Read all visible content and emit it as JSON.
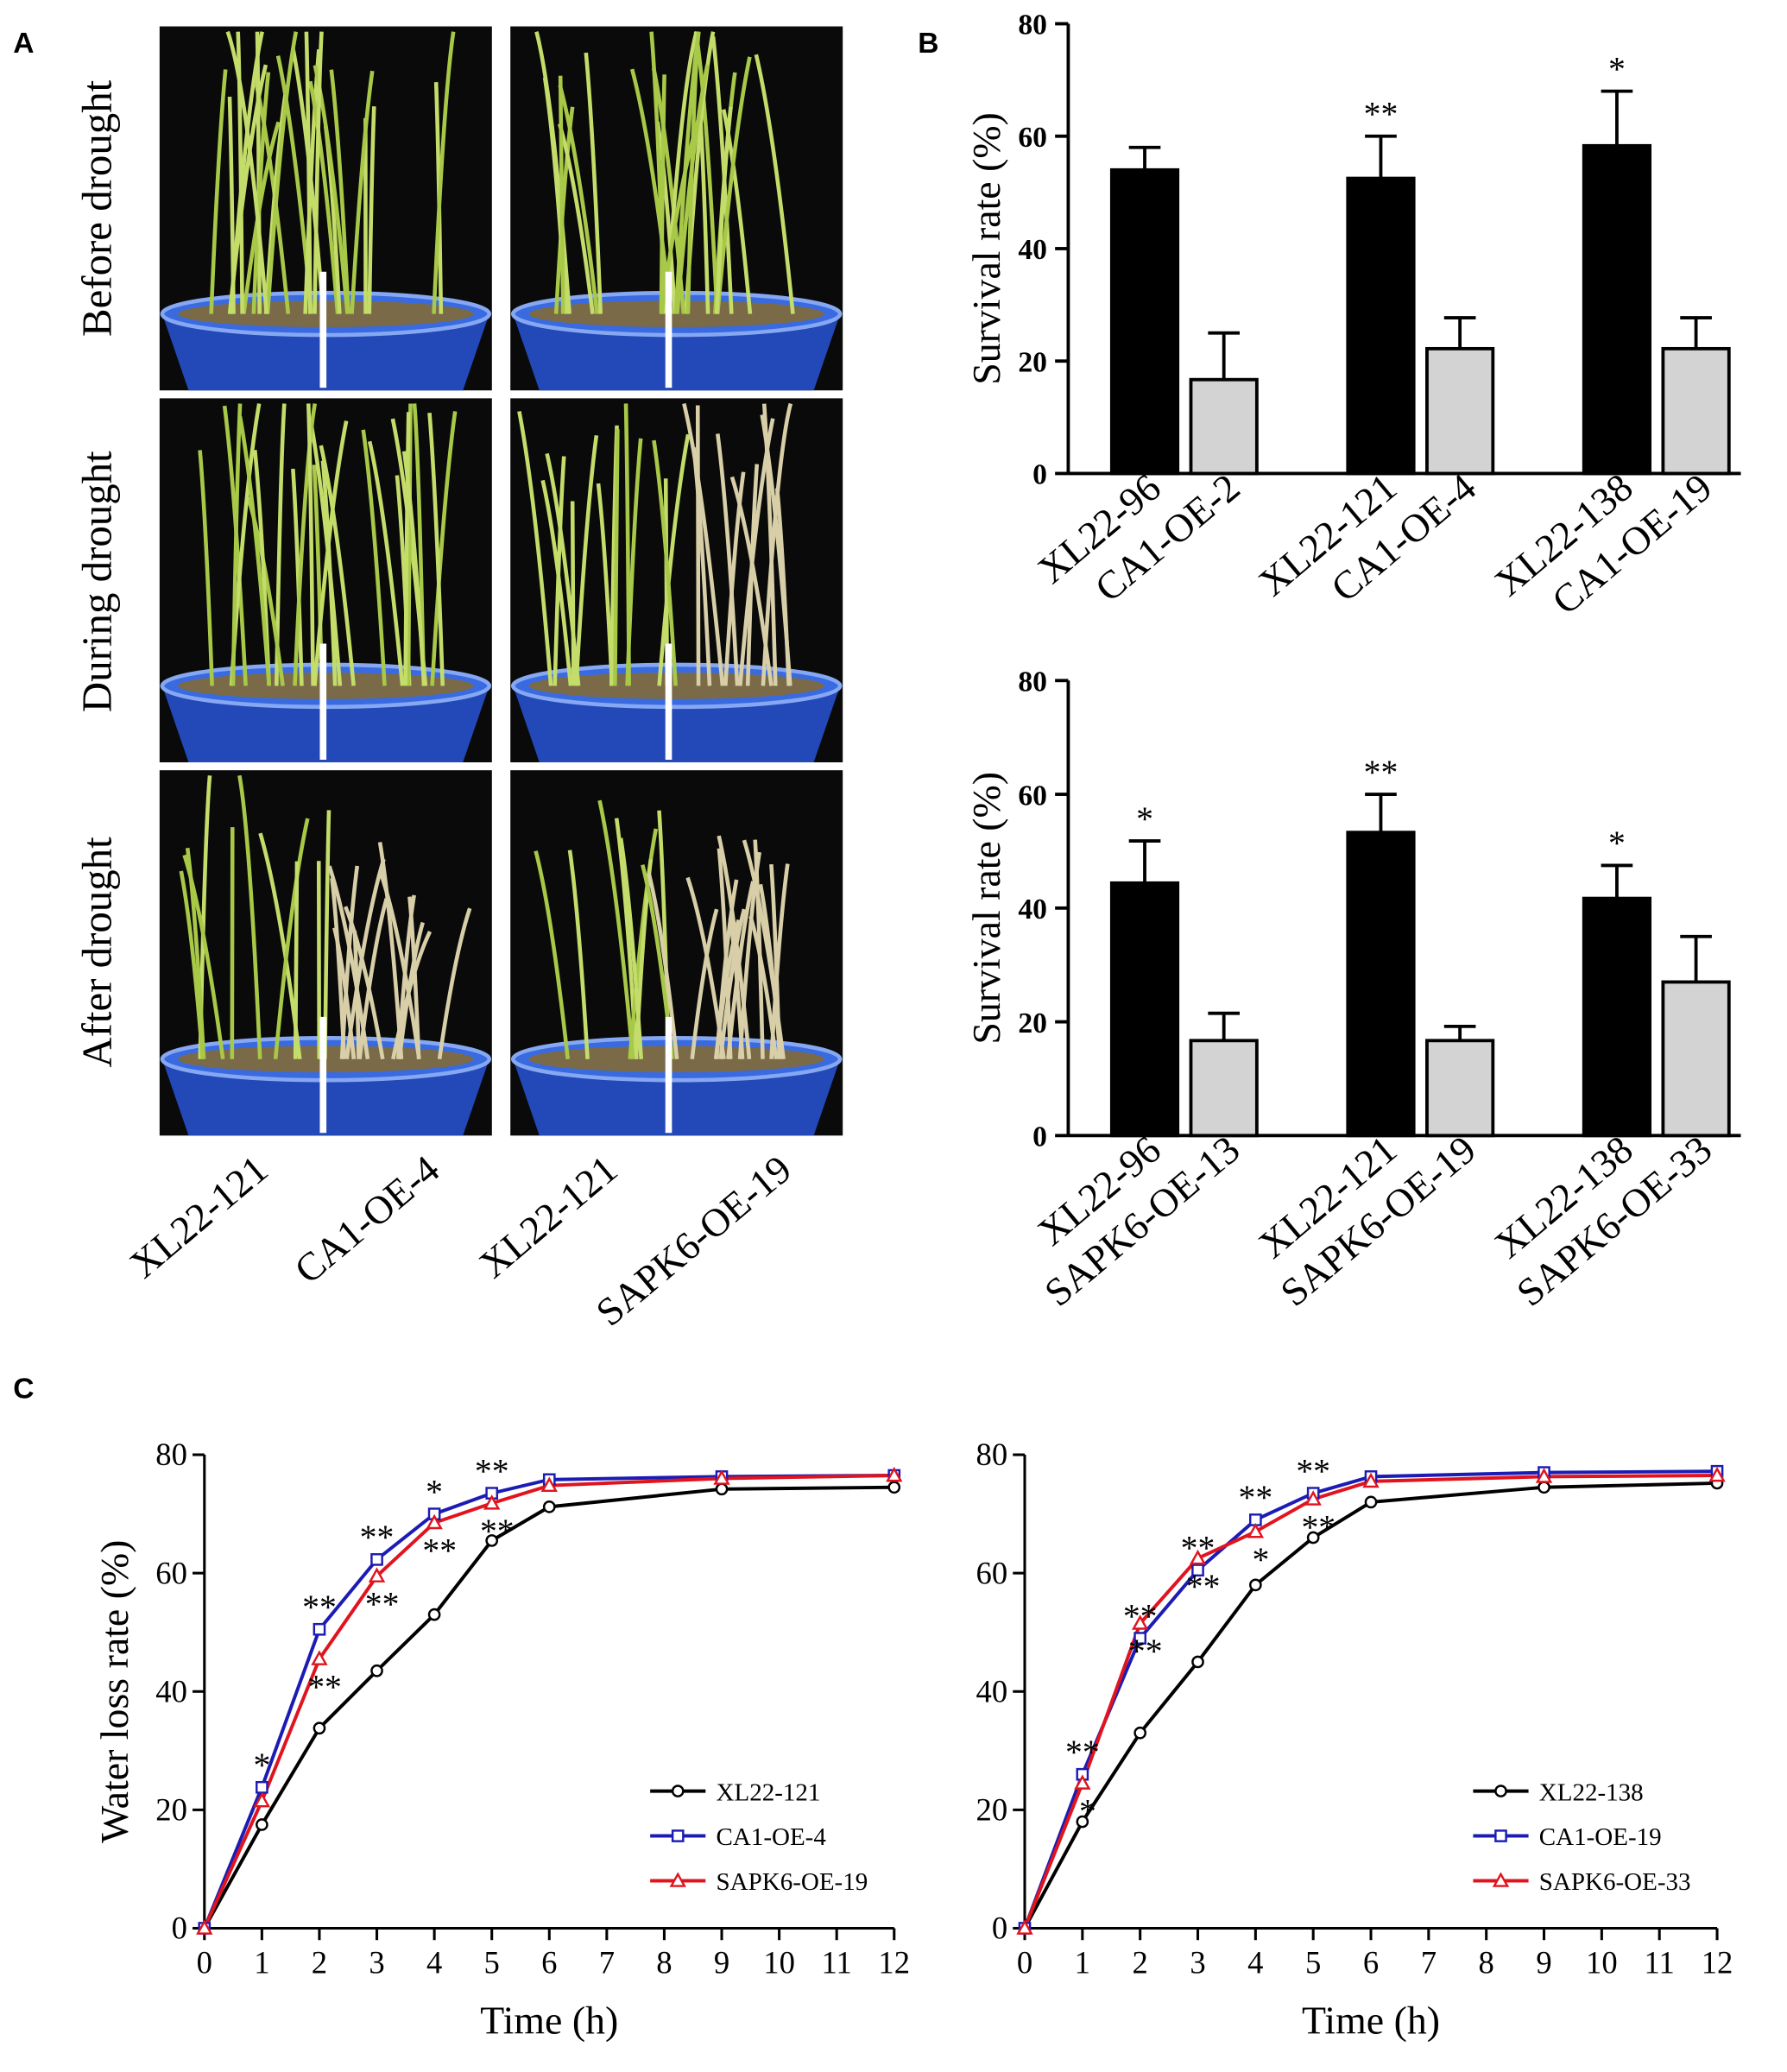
{
  "panel_labels": [
    "A",
    "B",
    "C"
  ],
  "photo_panel": {
    "row_labels": [
      "Before drought",
      "During drought",
      "After drought"
    ],
    "column_labels": [
      "XL22-121",
      "CA1-OE-4",
      "XL22-121",
      "SAPK6-OE-19"
    ]
  },
  "chart_data": [
    {
      "type": "bar",
      "ylabel": "Survival rate (%)",
      "categories": [
        "XL22-96",
        "CA1-OE-2",
        "XL22-121",
        "CA1-OE-4",
        "XL22-138",
        "CA1-OE-19"
      ],
      "values": [
        54,
        16.7,
        52.5,
        22.2,
        58.3,
        22.2
      ],
      "errors": [
        4,
        8.3,
        7.5,
        5.5,
        9.7,
        5.5
      ],
      "colors": [
        "#000000",
        "#d3d3d3",
        "#000000",
        "#d3d3d3",
        "#000000",
        "#d3d3d3"
      ],
      "ylim": [
        0,
        80
      ],
      "yticks": [
        0,
        20,
        40,
        60,
        80
      ],
      "annotations": [
        {
          "text": "**",
          "index": 2
        },
        {
          "text": "*",
          "index": 4
        }
      ]
    },
    {
      "type": "bar",
      "ylabel": "Survival rate (%)",
      "categories": [
        "XL22-96",
        "SAPK6-OE-13",
        "XL22-121",
        "SAPK6-OE-19",
        "XL22-138",
        "SAPK6-OE-33"
      ],
      "values": [
        44.4,
        16.7,
        53.3,
        16.7,
        41.7,
        27
      ],
      "errors": [
        7.4,
        4.8,
        6.7,
        2.5,
        5.8,
        8
      ],
      "colors": [
        "#000000",
        "#d3d3d3",
        "#000000",
        "#d3d3d3",
        "#000000",
        "#d3d3d3"
      ],
      "ylim": [
        0,
        80
      ],
      "yticks": [
        0,
        20,
        40,
        60,
        80
      ],
      "annotations": [
        {
          "text": "*",
          "index": 0
        },
        {
          "text": "**",
          "index": 2
        },
        {
          "text": "*",
          "index": 4
        }
      ]
    },
    {
      "type": "line",
      "xlabel": "Time (h)",
      "ylabel": "Water  loss rate (%)",
      "x": [
        0,
        1,
        2,
        3,
        4,
        5,
        6,
        9,
        12
      ],
      "xlim": [
        0,
        12
      ],
      "xticks": [
        0,
        1,
        2,
        3,
        4,
        5,
        6,
        7,
        8,
        9,
        10,
        11,
        12
      ],
      "ylim": [
        0,
        80
      ],
      "yticks": [
        0,
        20,
        40,
        60,
        80
      ],
      "legend": "lower right",
      "series": [
        {
          "name": "XL22-121",
          "color": "#000000",
          "marker": "circle",
          "values": [
            0,
            17.5,
            33.8,
            43.5,
            53,
            65.5,
            71.2,
            74.2,
            74.5
          ]
        },
        {
          "name": "CA1-OE-4",
          "color": "#1c1cb4",
          "marker": "square",
          "values": [
            0,
            23.8,
            50.5,
            62.3,
            70,
            73.5,
            75.8,
            76.3,
            76.5
          ]
        },
        {
          "name": "SAPK6-OE-19",
          "color": "#e0141e",
          "marker": "triangle",
          "values": [
            0,
            21.5,
            45.5,
            59.5,
            68.5,
            71.8,
            74.8,
            76,
            76.5
          ]
        }
      ],
      "annotations": [
        {
          "text": "*",
          "series": 1,
          "index": 1
        },
        {
          "text": "**",
          "series": 1,
          "index": 2
        },
        {
          "text": "**",
          "series": 2,
          "index": 2
        },
        {
          "text": "**",
          "series": 1,
          "index": 3
        },
        {
          "text": "**",
          "series": 2,
          "index": 3
        },
        {
          "text": "*",
          "series": 1,
          "index": 4
        },
        {
          "text": "**",
          "series": 2,
          "index": 4
        },
        {
          "text": "**",
          "series": 1,
          "index": 5
        },
        {
          "text": "**",
          "series": 2,
          "index": 5
        }
      ]
    },
    {
      "type": "line",
      "xlabel": "Time (h)",
      "x": [
        0,
        1,
        2,
        3,
        4,
        5,
        6,
        9,
        12
      ],
      "xlim": [
        0,
        12
      ],
      "xticks": [
        0,
        1,
        2,
        3,
        4,
        5,
        6,
        7,
        8,
        9,
        10,
        11,
        12
      ],
      "ylim": [
        0,
        80
      ],
      "yticks": [
        0,
        20,
        40,
        60,
        80
      ],
      "legend": "lower right",
      "series": [
        {
          "name": "XL22-138",
          "color": "#000000",
          "marker": "circle",
          "values": [
            0,
            18,
            33,
            45,
            58,
            66,
            72,
            74.5,
            75.2
          ]
        },
        {
          "name": "CA1-OE-19",
          "color": "#1c1cb4",
          "marker": "square",
          "values": [
            0,
            26,
            49,
            60.5,
            69,
            73.5,
            76.3,
            77,
            77.2
          ]
        },
        {
          "name": "SAPK6-OE-33",
          "color": "#e0141e",
          "marker": "triangle",
          "values": [
            0,
            24.5,
            51.5,
            62.5,
            67,
            72.5,
            75.5,
            76.3,
            76.5
          ]
        }
      ],
      "annotations": [
        {
          "text": "**",
          "series": 1,
          "index": 1
        },
        {
          "text": "*",
          "series": 2,
          "index": 1
        },
        {
          "text": "**",
          "series": 1,
          "index": 2
        },
        {
          "text": "**",
          "series": 2,
          "index": 2
        },
        {
          "text": "**",
          "series": 1,
          "index": 3
        },
        {
          "text": "**",
          "series": 2,
          "index": 3
        },
        {
          "text": "**",
          "series": 1,
          "index": 4
        },
        {
          "text": "*",
          "series": 2,
          "index": 4
        },
        {
          "text": "**",
          "series": 1,
          "index": 5
        },
        {
          "text": "**",
          "series": 2,
          "index": 5
        }
      ]
    }
  ]
}
